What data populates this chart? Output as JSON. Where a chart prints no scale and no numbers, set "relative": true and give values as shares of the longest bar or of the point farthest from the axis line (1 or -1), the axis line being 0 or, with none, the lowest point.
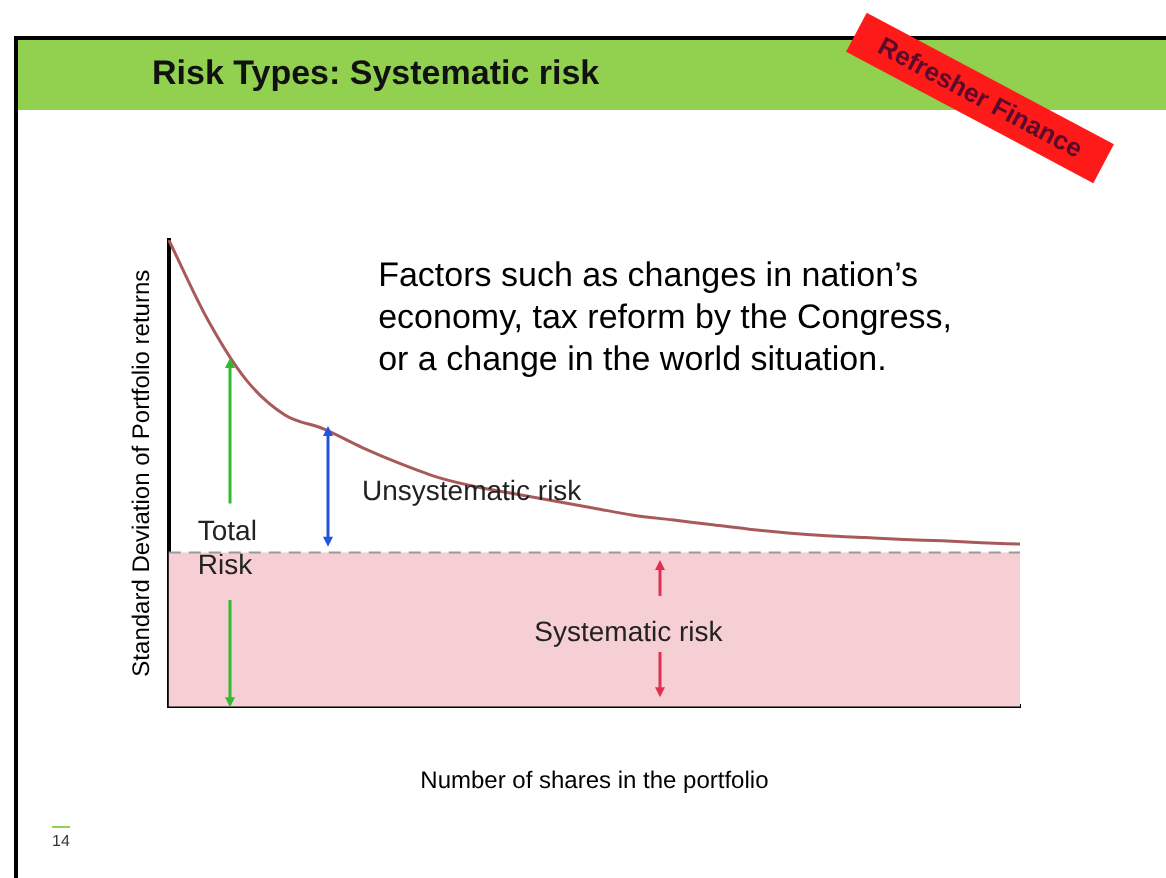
{
  "chart_data": {
    "type": "line",
    "title": "Risk Types: Systematic risk",
    "xlabel": "Number of shares in the portfolio",
    "ylabel": "Standard Deviation of Portfolio returns",
    "relative": true,
    "marker": "none",
    "line_style": "solid",
    "grid": false,
    "legend": false,
    "categories": [
      null,
      null,
      null,
      null,
      null,
      null,
      null,
      null,
      null,
      null,
      null,
      null,
      null,
      null,
      null,
      null,
      null,
      null,
      null,
      null,
      null,
      null,
      null
    ],
    "series": [
      {
        "color": "#a85a5a",
        "values": [
          1.0,
          0.83,
          0.7,
          0.625,
          0.595,
          0.555,
          0.52,
          0.49,
          0.47,
          0.455,
          0.44,
          0.425,
          0.41,
          0.4,
          0.39,
          0.38,
          0.372,
          0.366,
          0.362,
          0.358,
          0.355,
          0.351,
          0.348
        ]
      }
    ],
    "ref_lines": [
      {
        "axis": "y",
        "value": 0.33,
        "color": "#999999",
        "line_style": "dashed"
      }
    ],
    "bands": [
      {
        "axis": "y",
        "from": 0,
        "to": 0.33,
        "label": "Systematic risk",
        "color": "#f6cfd5"
      }
    ],
    "annotations": [
      "Factors such as changes in nation’s economy, tax reform by the Congress, or a change in the world situation.",
      "Unsystematic risk",
      "Total Risk",
      "Refresher Finance",
      "14"
    ]
  }
}
